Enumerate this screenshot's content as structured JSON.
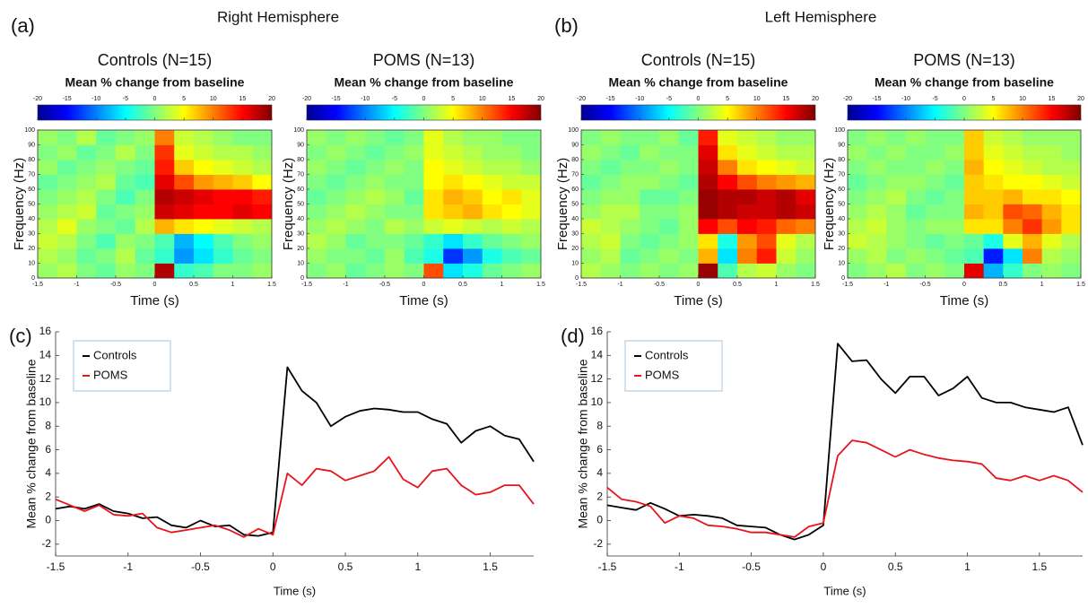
{
  "chart_data": [
    {
      "type": "heatmap",
      "panel_label": "(a)",
      "heading": "Right Hemisphere",
      "title": "Controls (N=15)",
      "subtitle": "Mean % change from baseline",
      "xlabel": "Time (s)",
      "ylabel": "Frequency (Hz)",
      "colorscale": "jet",
      "zlim": [
        -20,
        20
      ],
      "zticks": [
        -20,
        -15,
        -10,
        -5,
        0,
        5,
        10,
        15,
        20
      ],
      "xlim": [
        -1.5,
        1.5
      ],
      "xticks": [
        -1.5,
        -1,
        -0.5,
        0,
        0.5,
        1,
        1.5
      ],
      "ylim": [
        0,
        100
      ],
      "yticks": [
        0,
        10,
        20,
        30,
        40,
        50,
        60,
        70,
        80,
        90,
        100
      ],
      "x": [
        -1.375,
        -1.125,
        -0.875,
        -0.625,
        -0.375,
        -0.125,
        0.125,
        0.375,
        0.625,
        0.875,
        1.125,
        1.375
      ],
      "y": [
        5,
        15,
        25,
        35,
        45,
        55,
        65,
        75,
        85,
        95
      ],
      "values": [
        [
          1,
          2,
          0,
          -1,
          1,
          0,
          18,
          -3,
          -2,
          0,
          0,
          1
        ],
        [
          2,
          1,
          -1,
          0,
          2,
          -1,
          -3,
          -9,
          -6,
          -3,
          -1,
          0
        ],
        [
          3,
          2,
          0,
          -2,
          1,
          0,
          -2,
          -8,
          -5,
          -2,
          0,
          1
        ],
        [
          2,
          4,
          1,
          0,
          -1,
          2,
          8,
          6,
          5,
          4,
          3,
          2
        ],
        [
          1,
          2,
          3,
          -1,
          0,
          1,
          17,
          16,
          15,
          15,
          16,
          15
        ],
        [
          0,
          1,
          2,
          0,
          -2,
          0,
          18,
          17,
          16,
          15,
          15,
          14
        ],
        [
          -1,
          0,
          1,
          2,
          -1,
          -2,
          16,
          12,
          9,
          8,
          7,
          5
        ],
        [
          1,
          -1,
          0,
          1,
          0,
          -1,
          14,
          7,
          5,
          4,
          3,
          2
        ],
        [
          0,
          1,
          -1,
          0,
          2,
          0,
          13,
          4,
          3,
          2,
          2,
          1
        ],
        [
          1,
          0,
          2,
          -1,
          0,
          1,
          10,
          3,
          2,
          1,
          0,
          0
        ]
      ]
    },
    {
      "type": "heatmap",
      "title": "POMS (N=13)",
      "subtitle": "Mean % change from baseline",
      "xlabel": "Time (s)",
      "ylabel": "Frequency (Hz)",
      "colorscale": "jet",
      "zlim": [
        -20,
        20
      ],
      "zticks": [
        -20,
        -15,
        -10,
        -5,
        0,
        5,
        10,
        15,
        20
      ],
      "xlim": [
        -1.5,
        1.5
      ],
      "xticks": [
        -1.5,
        -1,
        -0.5,
        0,
        0.5,
        1,
        1.5
      ],
      "ylim": [
        0,
        100
      ],
      "yticks": [
        0,
        10,
        20,
        30,
        40,
        50,
        60,
        70,
        80,
        90,
        100
      ],
      "x": [
        -1.375,
        -1.125,
        -0.875,
        -0.625,
        -0.375,
        -0.125,
        0.125,
        0.375,
        0.625,
        0.875,
        1.125,
        1.375
      ],
      "y": [
        5,
        15,
        25,
        35,
        45,
        55,
        65,
        75,
        85,
        95
      ],
      "values": [
        [
          0,
          1,
          -1,
          0,
          1,
          0,
          12,
          -6,
          -4,
          -1,
          0,
          1
        ],
        [
          1,
          0,
          0,
          -1,
          1,
          -2,
          -4,
          -13,
          -9,
          -4,
          -2,
          -1
        ],
        [
          2,
          1,
          -1,
          0,
          0,
          -1,
          -3,
          -6,
          -3,
          -1,
          0,
          1
        ],
        [
          1,
          2,
          1,
          0,
          2,
          1,
          3,
          4,
          3,
          2,
          3,
          2
        ],
        [
          0,
          1,
          2,
          1,
          0,
          0,
          6,
          7,
          8,
          6,
          5,
          4
        ],
        [
          -1,
          0,
          1,
          2,
          1,
          -1,
          6,
          8,
          7,
          5,
          6,
          4
        ],
        [
          0,
          -1,
          0,
          1,
          0,
          0,
          5,
          6,
          5,
          4,
          3,
          3
        ],
        [
          1,
          0,
          -1,
          0,
          1,
          0,
          5,
          4,
          3,
          2,
          2,
          1
        ],
        [
          0,
          1,
          0,
          -1,
          0,
          1,
          4,
          3,
          2,
          1,
          1,
          0
        ],
        [
          1,
          0,
          1,
          0,
          -1,
          0,
          4,
          2,
          1,
          1,
          0,
          0
        ]
      ]
    },
    {
      "type": "heatmap",
      "panel_label": "(b)",
      "heading": "Left Hemisphere",
      "title": "Controls (N=15)",
      "subtitle": "Mean % change from baseline",
      "xlabel": "Time (s)",
      "ylabel": "Frequency (Hz)",
      "colorscale": "jet",
      "zlim": [
        -20,
        20
      ],
      "zticks": [
        -20,
        -15,
        -10,
        -5,
        0,
        5,
        10,
        15,
        20
      ],
      "xlim": [
        -1.5,
        1.5
      ],
      "xticks": [
        -1.5,
        -1,
        -0.5,
        0,
        0.5,
        1,
        1.5
      ],
      "ylim": [
        0,
        100
      ],
      "yticks": [
        0,
        10,
        20,
        30,
        40,
        50,
        60,
        70,
        80,
        90,
        100
      ],
      "x": [
        -1.375,
        -1.125,
        -0.875,
        -0.625,
        -0.375,
        -0.125,
        0.125,
        0.375,
        0.625,
        0.875,
        1.125,
        1.375
      ],
      "y": [
        5,
        15,
        25,
        35,
        45,
        55,
        65,
        75,
        85,
        95
      ],
      "values": [
        [
          2,
          1,
          0,
          1,
          0,
          1,
          19,
          -2,
          2,
          3,
          1,
          0
        ],
        [
          1,
          2,
          -1,
          0,
          1,
          0,
          8,
          -6,
          10,
          14,
          3,
          1
        ],
        [
          2,
          3,
          0,
          -1,
          0,
          1,
          6,
          -4,
          9,
          12,
          4,
          2
        ],
        [
          3,
          2,
          1,
          0,
          -1,
          1,
          15,
          12,
          15,
          14,
          11,
          10
        ],
        [
          1,
          2,
          2,
          0,
          0,
          1,
          19,
          18,
          17,
          17,
          18,
          17
        ],
        [
          0,
          1,
          1,
          -1,
          -1,
          0,
          19,
          18,
          18,
          17,
          18,
          16
        ],
        [
          -1,
          0,
          1,
          1,
          0,
          -1,
          18,
          15,
          12,
          10,
          9,
          8
        ],
        [
          0,
          -1,
          0,
          0,
          1,
          0,
          17,
          10,
          6,
          5,
          4,
          3
        ],
        [
          1,
          0,
          -1,
          1,
          0,
          0,
          16,
          6,
          4,
          3,
          2,
          2
        ],
        [
          0,
          1,
          0,
          0,
          1,
          -1,
          14,
          4,
          3,
          2,
          1,
          1
        ]
      ]
    },
    {
      "type": "heatmap",
      "title": "POMS (N=13)",
      "subtitle": "Mean % change from baseline",
      "xlabel": "Time (s)",
      "ylabel": "Frequency (Hz)",
      "colorscale": "jet",
      "zlim": [
        -20,
        20
      ],
      "zticks": [
        -20,
        -15,
        -10,
        -5,
        0,
        5,
        10,
        15,
        20
      ],
      "xlim": [
        -1.5,
        1.5
      ],
      "xticks": [
        -1.5,
        -1,
        -0.5,
        0,
        0.5,
        1,
        1.5
      ],
      "ylim": [
        0,
        100
      ],
      "yticks": [
        0,
        10,
        20,
        30,
        40,
        50,
        60,
        70,
        80,
        90,
        100
      ],
      "x": [
        -1.375,
        -1.125,
        -0.875,
        -0.625,
        -0.375,
        -0.125,
        0.125,
        0.375,
        0.625,
        0.875,
        1.125,
        1.375
      ],
      "y": [
        5,
        15,
        25,
        35,
        45,
        55,
        65,
        75,
        85,
        95
      ],
      "values": [
        [
          0,
          1,
          2,
          0,
          1,
          0,
          16,
          -8,
          -3,
          0,
          1,
          0
        ],
        [
          1,
          2,
          0,
          1,
          0,
          -1,
          -2,
          -14,
          -6,
          10,
          2,
          1
        ],
        [
          3,
          2,
          1,
          0,
          -1,
          0,
          -1,
          -4,
          4,
          8,
          4,
          2
        ],
        [
          2,
          3,
          1,
          0,
          1,
          1,
          6,
          6,
          10,
          13,
          9,
          6
        ],
        [
          1,
          2,
          1,
          -1,
          0,
          0,
          8,
          7,
          12,
          11,
          8,
          6
        ],
        [
          0,
          1,
          2,
          0,
          -1,
          0,
          7,
          7,
          8,
          6,
          6,
          5
        ],
        [
          -1,
          0,
          1,
          1,
          0,
          -1,
          7,
          6,
          5,
          5,
          4,
          3
        ],
        [
          0,
          1,
          0,
          0,
          1,
          0,
          8,
          5,
          4,
          3,
          2,
          2
        ],
        [
          1,
          0,
          1,
          0,
          0,
          1,
          7,
          4,
          3,
          2,
          2,
          1
        ],
        [
          0,
          1,
          0,
          1,
          0,
          0,
          7,
          3,
          2,
          1,
          1,
          1
        ]
      ]
    },
    {
      "type": "line",
      "panel_label": "(c)",
      "xlabel": "Time (s)",
      "ylabel": "Mean % change from baseline",
      "legend": "upper left",
      "xlim": [
        -1.5,
        1.8
      ],
      "xticks": [
        -1.5,
        -1,
        -0.5,
        0,
        0.5,
        1,
        1.5
      ],
      "ylim": [
        -3,
        16
      ],
      "yticks": [
        -2,
        0,
        2,
        4,
        6,
        8,
        10,
        12,
        14,
        16
      ],
      "x": [
        -1.5,
        -1.4,
        -1.3,
        -1.2,
        -1.1,
        -1.0,
        -0.9,
        -0.8,
        -0.7,
        -0.6,
        -0.5,
        -0.4,
        -0.3,
        -0.2,
        -0.1,
        0,
        0.1,
        0.2,
        0.3,
        0.4,
        0.5,
        0.6,
        0.7,
        0.8,
        0.9,
        1.0,
        1.1,
        1.2,
        1.3,
        1.4,
        1.5,
        1.6,
        1.7,
        1.8
      ],
      "series": [
        {
          "name": "Controls",
          "color": "#000000",
          "values": [
            1,
            1.2,
            1,
            1.4,
            0.8,
            0.6,
            0.2,
            0.3,
            -0.4,
            -0.6,
            0,
            -0.5,
            -0.4,
            -1.2,
            -1.3,
            -1,
            13,
            11,
            10,
            8,
            8.8,
            9.3,
            9.5,
            9.4,
            9.2,
            9.2,
            8.6,
            8.2,
            6.6,
            7.6,
            8,
            7.2,
            6.9,
            5
          ]
        },
        {
          "name": "POMS",
          "color": "#e8141c",
          "values": [
            1.8,
            1.3,
            0.8,
            1.3,
            0.5,
            0.4,
            0.6,
            -0.6,
            -1,
            -0.8,
            -0.6,
            -0.4,
            -0.8,
            -1.4,
            -0.7,
            -1.2,
            4,
            3,
            4.4,
            4.2,
            3.4,
            3.8,
            4.2,
            5.4,
            3.5,
            2.8,
            4.2,
            4.4,
            3,
            2.2,
            2.4,
            3,
            3,
            1.4
          ]
        }
      ]
    },
    {
      "type": "line",
      "panel_label": "(d)",
      "xlabel": "Time (s)",
      "ylabel": "Mean % change from baseline",
      "legend": "upper left",
      "xlim": [
        -1.5,
        1.8
      ],
      "xticks": [
        -1.5,
        -1,
        -0.5,
        0,
        0.5,
        1,
        1.5
      ],
      "ylim": [
        -3,
        16
      ],
      "yticks": [
        -2,
        0,
        2,
        4,
        6,
        8,
        10,
        12,
        14,
        16
      ],
      "x": [
        -1.5,
        -1.4,
        -1.3,
        -1.2,
        -1.1,
        -1.0,
        -0.9,
        -0.8,
        -0.7,
        -0.6,
        -0.5,
        -0.4,
        -0.3,
        -0.2,
        -0.1,
        0,
        0.1,
        0.2,
        0.3,
        0.4,
        0.5,
        0.6,
        0.7,
        0.8,
        0.9,
        1.0,
        1.1,
        1.2,
        1.3,
        1.4,
        1.5,
        1.6,
        1.7,
        1.8
      ],
      "series": [
        {
          "name": "Controls",
          "color": "#000000",
          "values": [
            1.3,
            1.1,
            0.9,
            1.5,
            1,
            0.4,
            0.5,
            0.4,
            0.2,
            -0.4,
            -0.5,
            -0.6,
            -1.2,
            -1.6,
            -1.2,
            -0.4,
            15,
            13.5,
            13.6,
            12,
            10.8,
            12.2,
            12.2,
            10.6,
            11.2,
            12.2,
            10.4,
            10,
            10,
            9.6,
            9.4,
            9.2,
            9.6,
            6.4
          ]
        },
        {
          "name": "POMS",
          "color": "#e8141c",
          "values": [
            2.8,
            1.8,
            1.6,
            1.2,
            -0.2,
            0.4,
            0.2,
            -0.4,
            -0.5,
            -0.7,
            -1,
            -1,
            -1.2,
            -1.4,
            -0.5,
            -0.2,
            5.5,
            6.8,
            6.6,
            6,
            5.4,
            6,
            5.6,
            5.3,
            5.1,
            5,
            4.8,
            3.6,
            3.4,
            3.8,
            3.4,
            3.8,
            3.4,
            2.4
          ]
        }
      ]
    }
  ]
}
